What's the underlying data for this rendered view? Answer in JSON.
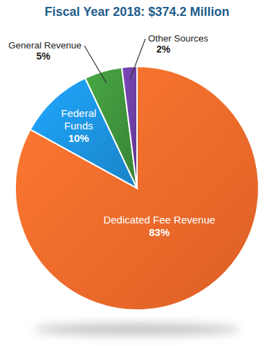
{
  "chart_data": {
    "type": "pie",
    "title": "Fiscal Year 2018: $374.2 Million",
    "categories": [
      "Dedicated Fee Revenue",
      "Federal Funds",
      "General Revenue",
      "Other Sources"
    ],
    "values": [
      83,
      10,
      5,
      2
    ],
    "value_labels": [
      "83%",
      "10%",
      "5%",
      "2%"
    ],
    "colors": [
      "#f2682a",
      "#1b8fd9",
      "#3d8f3a",
      "#6a3d9e"
    ],
    "data_labels": true
  }
}
